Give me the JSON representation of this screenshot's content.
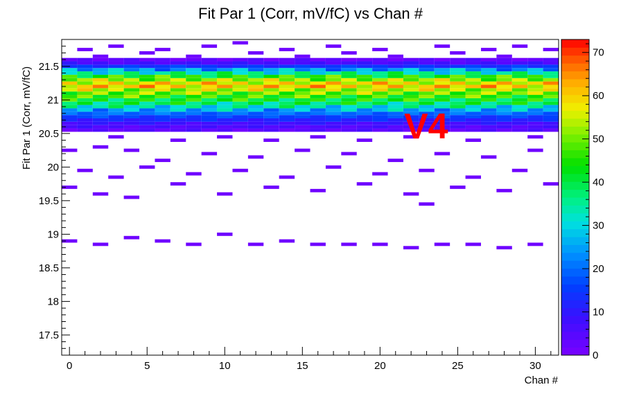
{
  "chart_data": {
    "type": "heatmap",
    "title": "Fit Par 1 (Corr, mV/fC) vs Chan #",
    "xlabel": "Chan #",
    "ylabel": "Fit Par 1 (Corr, mV/fC)",
    "xlim": [
      -0.5,
      31.5
    ],
    "ylim": [
      17.2,
      21.9
    ],
    "x_ticks": [
      "0",
      "5",
      "10",
      "15",
      "20",
      "25",
      "30"
    ],
    "y_ticks": [
      "17.5",
      "18",
      "18.5",
      "19",
      "19.5",
      "20",
      "20.5",
      "21",
      "21.5"
    ],
    "colorbar": {
      "range": [
        0,
        73
      ],
      "ticks": [
        "0",
        "10",
        "20",
        "30",
        "40",
        "50",
        "60",
        "70"
      ]
    },
    "grid": false,
    "annotation": {
      "text": "V4",
      "color": "#ff0000"
    },
    "core_profile": {
      "note_rows_y": [
        20.55,
        20.6,
        20.65,
        20.7,
        20.75,
        20.8,
        20.85,
        20.9,
        20.95,
        21.0,
        21.05,
        21.1,
        21.15,
        21.2,
        21.25,
        21.3,
        21.35,
        21.4,
        21.45,
        21.5,
        21.55,
        21.6
      ],
      "typical_counts": [
        4,
        6,
        8,
        12,
        16,
        20,
        26,
        32,
        38,
        42,
        46,
        50,
        54,
        60,
        58,
        52,
        44,
        34,
        24,
        14,
        7,
        3
      ]
    },
    "outlier_bins": [
      {
        "x": 0,
        "y": 20.25
      },
      {
        "x": 2,
        "y": 20.3
      },
      {
        "x": 4,
        "y": 20.25
      },
      {
        "x": 6,
        "y": 20.1
      },
      {
        "x": 9,
        "y": 20.2
      },
      {
        "x": 12,
        "y": 20.15
      },
      {
        "x": 15,
        "y": 20.25
      },
      {
        "x": 18,
        "y": 20.2
      },
      {
        "x": 21,
        "y": 20.1
      },
      {
        "x": 24,
        "y": 20.2
      },
      {
        "x": 27,
        "y": 20.15
      },
      {
        "x": 30,
        "y": 20.25
      },
      {
        "x": 1,
        "y": 19.95
      },
      {
        "x": 3,
        "y": 19.85
      },
      {
        "x": 5,
        "y": 20.0
      },
      {
        "x": 8,
        "y": 19.9
      },
      {
        "x": 11,
        "y": 19.95
      },
      {
        "x": 14,
        "y": 19.85
      },
      {
        "x": 17,
        "y": 20.0
      },
      {
        "x": 20,
        "y": 19.9
      },
      {
        "x": 23,
        "y": 19.95
      },
      {
        "x": 26,
        "y": 19.85
      },
      {
        "x": 29,
        "y": 19.95
      },
      {
        "x": 31,
        "y": 19.75
      },
      {
        "x": 0,
        "y": 19.7
      },
      {
        "x": 7,
        "y": 19.75
      },
      {
        "x": 13,
        "y": 19.7
      },
      {
        "x": 19,
        "y": 19.75
      },
      {
        "x": 25,
        "y": 19.7
      },
      {
        "x": 2,
        "y": 19.6
      },
      {
        "x": 10,
        "y": 19.6
      },
      {
        "x": 16,
        "y": 19.65
      },
      {
        "x": 22,
        "y": 19.6
      },
      {
        "x": 28,
        "y": 19.65
      },
      {
        "x": 4,
        "y": 19.55
      },
      {
        "x": 23,
        "y": 19.45
      },
      {
        "x": 0,
        "y": 18.9
      },
      {
        "x": 2,
        "y": 18.85
      },
      {
        "x": 4,
        "y": 18.95
      },
      {
        "x": 6,
        "y": 18.9
      },
      {
        "x": 8,
        "y": 18.85
      },
      {
        "x": 10,
        "y": 19.0
      },
      {
        "x": 12,
        "y": 18.85
      },
      {
        "x": 14,
        "y": 18.9
      },
      {
        "x": 16,
        "y": 18.85
      },
      {
        "x": 18,
        "y": 18.85
      },
      {
        "x": 20,
        "y": 18.85
      },
      {
        "x": 22,
        "y": 18.8
      },
      {
        "x": 24,
        "y": 18.85
      },
      {
        "x": 26,
        "y": 18.85
      },
      {
        "x": 28,
        "y": 18.8
      },
      {
        "x": 30,
        "y": 18.85
      },
      {
        "x": 1,
        "y": 21.75
      },
      {
        "x": 3,
        "y": 21.8
      },
      {
        "x": 6,
        "y": 21.75
      },
      {
        "x": 9,
        "y": 21.8
      },
      {
        "x": 11,
        "y": 21.85
      },
      {
        "x": 14,
        "y": 21.75
      },
      {
        "x": 17,
        "y": 21.8
      },
      {
        "x": 20,
        "y": 21.75
      },
      {
        "x": 24,
        "y": 21.8
      },
      {
        "x": 27,
        "y": 21.75
      },
      {
        "x": 29,
        "y": 21.8
      },
      {
        "x": 31,
        "y": 21.75
      },
      {
        "x": 2,
        "y": 21.65
      },
      {
        "x": 5,
        "y": 21.7
      },
      {
        "x": 8,
        "y": 21.65
      },
      {
        "x": 12,
        "y": 21.7
      },
      {
        "x": 15,
        "y": 21.65
      },
      {
        "x": 18,
        "y": 21.7
      },
      {
        "x": 21,
        "y": 21.65
      },
      {
        "x": 25,
        "y": 21.7
      },
      {
        "x": 28,
        "y": 21.65
      },
      {
        "x": 3,
        "y": 20.45
      },
      {
        "x": 7,
        "y": 20.4
      },
      {
        "x": 10,
        "y": 20.45
      },
      {
        "x": 13,
        "y": 20.4
      },
      {
        "x": 16,
        "y": 20.45
      },
      {
        "x": 19,
        "y": 20.4
      },
      {
        "x": 22,
        "y": 20.45
      },
      {
        "x": 26,
        "y": 20.4
      },
      {
        "x": 30,
        "y": 20.45
      }
    ]
  }
}
